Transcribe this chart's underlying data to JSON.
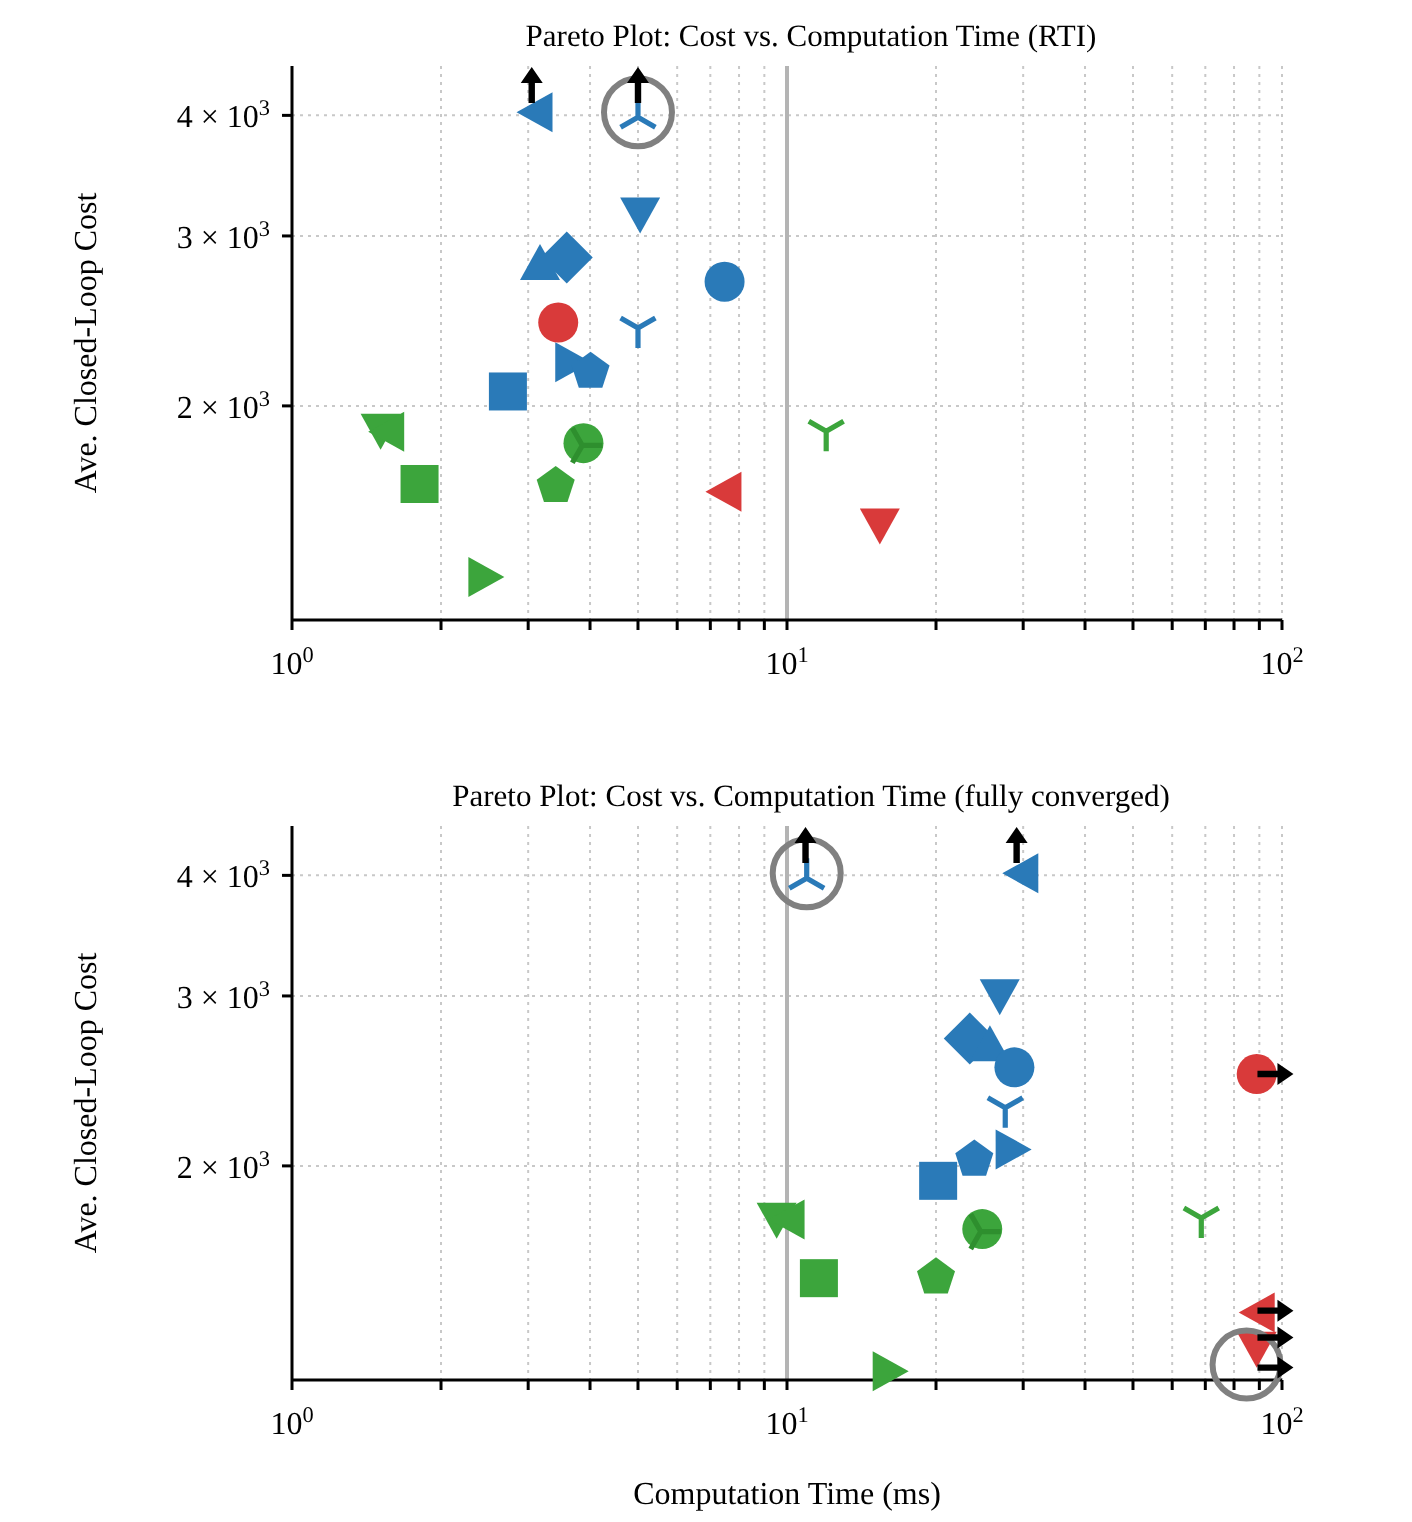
{
  "chart_data": [
    {
      "type": "scatter",
      "title": "Pareto Plot: Cost vs. Computation Time (RTI)",
      "ylabel": "Ave. Closed-Loop Cost",
      "log": "xy",
      "grid": true,
      "xlim": [
        1,
        100
      ],
      "ylim": [
        1200,
        4500
      ],
      "xticks": [
        {
          "value": 1,
          "label": "10$^{0}$"
        },
        {
          "value": 2,
          "label": null
        },
        {
          "value": 3,
          "label": null
        },
        {
          "value": 4,
          "label": null
        },
        {
          "value": 5,
          "label": null
        },
        {
          "value": 6,
          "label": null
        },
        {
          "value": 7,
          "label": null
        },
        {
          "value": 8,
          "label": null
        },
        {
          "value": 9,
          "label": null
        },
        {
          "value": 10,
          "label": "10$^{1}$"
        },
        {
          "value": 20,
          "label": null
        },
        {
          "value": 30,
          "label": null
        },
        {
          "value": 40,
          "label": null
        },
        {
          "value": 50,
          "label": null
        },
        {
          "value": 60,
          "label": null
        },
        {
          "value": 70,
          "label": null
        },
        {
          "value": 80,
          "label": null
        },
        {
          "value": 90,
          "label": null
        },
        {
          "value": 100,
          "label": "10$^{2}$"
        }
      ],
      "yticks": [
        {
          "value": 2000,
          "label": "2 × 10$^{3}$"
        },
        {
          "value": 3000,
          "label": "3 × 10$^{3}$"
        },
        {
          "value": 4000,
          "label": "4 × 10$^{3}$"
        }
      ],
      "ref_lines": [
        {
          "axis": "x",
          "value": 10,
          "color": "#b4b4b4"
        }
      ],
      "series": [
        {
          "color": "#2a7ab8",
          "marker": "triangle_left",
          "x": [
            3.09
          ],
          "values": [
            4030
          ]
        },
        {
          "color": "#2a7ab8",
          "marker": "cross_up",
          "x": [
            5.0
          ],
          "values": [
            4030
          ]
        },
        {
          "color": "#2a7ab8",
          "marker": "triangle_down",
          "x": [
            5.05
          ],
          "values": [
            3150
          ]
        },
        {
          "color": "#2a7ab8",
          "marker": "triangle",
          "x": [
            3.17
          ],
          "values": [
            2820
          ]
        },
        {
          "color": "#2a7ab8",
          "marker": "diamond",
          "x": [
            3.59
          ],
          "values": [
            2850
          ]
        },
        {
          "color": "#2a7ab8",
          "marker": "circle",
          "x": [
            7.48
          ],
          "values": [
            2690
          ]
        },
        {
          "color": "#2a7ab8",
          "marker": "cross_down",
          "x": [
            5.0
          ],
          "values": [
            2380
          ]
        },
        {
          "color": "#2a7ab8",
          "marker": "triangle_right",
          "x": [
            3.7
          ],
          "values": [
            2220
          ]
        },
        {
          "color": "#2a7ab8",
          "x": [
            4.01
          ],
          "values": [
            2180
          ]
        },
        {
          "color": "#2a7ab8",
          "marker": "square",
          "x": [
            2.73
          ],
          "values": [
            2070
          ]
        },
        {
          "color": "#3ca53c",
          "marker": "triangle_down",
          "x": [
            1.51
          ],
          "values": [
            1880
          ]
        },
        {
          "color": "#3ca53c",
          "marker": "triangle_left",
          "x": [
            1.55
          ],
          "values": [
            1880
          ]
        },
        {
          "color": "#3ca53c",
          "marker": "circle",
          "x": [
            3.88
          ],
          "values": [
            1830
          ]
        },
        {
          "color": "#2e8f2e",
          "marker": "cross_right",
          "x": [
            3.95
          ],
          "values": [
            1820
          ]
        },
        {
          "color": "#3ca53c",
          "marker": "square",
          "x": [
            1.81
          ],
          "values": [
            1660
          ]
        },
        {
          "color": "#3ca53c",
          "x": [
            3.41
          ],
          "values": [
            1660
          ]
        },
        {
          "color": "#3ca53c",
          "marker": "triangle_right",
          "x": [
            2.47
          ],
          "values": [
            1330
          ]
        },
        {
          "color": "#3ca53c",
          "marker": "cross_down",
          "x": [
            12.0
          ],
          "values": [
            1860
          ]
        },
        {
          "color": "#d93a3a",
          "marker": "circle",
          "x": [
            3.45
          ],
          "values": [
            2440
          ]
        },
        {
          "color": "#d93a3a",
          "marker": "triangle_left",
          "x": [
            7.44
          ],
          "values": [
            1630
          ]
        },
        {
          "color": "#d93a3a",
          "marker": "triangle_down",
          "x": [
            15.4
          ],
          "values": [
            1500
          ]
        },
        {
          "color": "#808080",
          "marker": "circle_open",
          "x": [
            5.0
          ],
          "values": [
            4030
          ]
        },
        {
          "color": "#000000",
          "marker": "triangle_arrow_up",
          "x": [
            3.05,
            5.0
          ],
          "values": [
            4300,
            4300
          ]
        }
      ]
    },
    {
      "type": "scatter",
      "title": "Pareto Plot: Cost vs. Computation Time (fully converged)",
      "xlabel": "Computation Time (ms)",
      "ylabel": "Ave. Closed-Loop Cost",
      "log": "xy",
      "grid": true,
      "xlim": [
        1,
        100
      ],
      "ylim": [
        1200,
        4500
      ],
      "xticks": [
        {
          "value": 1,
          "label": "10$^{0}$"
        },
        {
          "value": 2,
          "label": null
        },
        {
          "value": 3,
          "label": null
        },
        {
          "value": 4,
          "label": null
        },
        {
          "value": 5,
          "label": null
        },
        {
          "value": 6,
          "label": null
        },
        {
          "value": 7,
          "label": null
        },
        {
          "value": 8,
          "label": null
        },
        {
          "value": 9,
          "label": null
        },
        {
          "value": 10,
          "label": "10$^{1}$"
        },
        {
          "value": 20,
          "label": null
        },
        {
          "value": 30,
          "label": null
        },
        {
          "value": 40,
          "label": null
        },
        {
          "value": 50,
          "label": null
        },
        {
          "value": 60,
          "label": null
        },
        {
          "value": 70,
          "label": null
        },
        {
          "value": 80,
          "label": null
        },
        {
          "value": 90,
          "label": null
        },
        {
          "value": 100,
          "label": "10$^{2}$"
        }
      ],
      "yticks": [
        {
          "value": 2000,
          "label": "2 × 10$^{3}$"
        },
        {
          "value": 3000,
          "label": "3 × 10$^{3}$"
        },
        {
          "value": 4000,
          "label": "4 × 10$^{3}$"
        }
      ],
      "ref_lines": [
        {
          "axis": "x",
          "value": 10,
          "color": "#b4b4b4"
        }
      ],
      "series": [
        {
          "color": "#2a7ab8",
          "marker": "cross_up",
          "x": [
            10.96
          ],
          "values": [
            4020
          ]
        },
        {
          "color": "#2a7ab8",
          "marker": "triangle_left",
          "x": [
            29.6
          ],
          "values": [
            4020
          ]
        },
        {
          "color": "#2a7ab8",
          "marker": "triangle_down",
          "x": [
            26.9
          ],
          "values": [
            2990
          ]
        },
        {
          "color": "#2a7ab8",
          "marker": "diamond",
          "x": [
            23.4
          ],
          "values": [
            2710
          ]
        },
        {
          "color": "#2a7ab8",
          "marker": "triangle",
          "x": [
            25.7
          ],
          "values": [
            2680
          ]
        },
        {
          "color": "#2a7ab8",
          "marker": "circle",
          "x": [
            28.8
          ],
          "values": [
            2530
          ]
        },
        {
          "color": "#2a7ab8",
          "marker": "cross_down",
          "x": [
            27.6
          ],
          "values": [
            2270
          ]
        },
        {
          "color": "#2a7ab8",
          "marker": "triangle_right",
          "x": [
            28.7
          ],
          "values": [
            2080
          ]
        },
        {
          "color": "#2a7ab8",
          "x": [
            23.9
          ],
          "values": [
            2040
          ]
        },
        {
          "color": "#2a7ab8",
          "marker": "square",
          "x": [
            20.2
          ],
          "values": [
            1930
          ]
        },
        {
          "color": "#3ca53c",
          "marker": "triangle_down",
          "x": [
            9.53
          ],
          "values": [
            1755
          ]
        },
        {
          "color": "#3ca53c",
          "marker": "triangle_left",
          "x": [
            9.98
          ],
          "values": [
            1760
          ]
        },
        {
          "color": "#3ca53c",
          "marker": "circle",
          "x": [
            24.8
          ],
          "values": [
            1720
          ]
        },
        {
          "color": "#2e8f2e",
          "marker": "cross_right",
          "x": [
            25.2
          ],
          "values": [
            1710
          ]
        },
        {
          "color": "#3ca53c",
          "marker": "square",
          "x": [
            11.6
          ],
          "values": [
            1530
          ]
        },
        {
          "color": "#3ca53c",
          "x": [
            20.0
          ],
          "values": [
            1540
          ]
        },
        {
          "color": "#3ca53c",
          "marker": "triangle_right",
          "x": [
            16.2
          ],
          "values": [
            1225
          ]
        },
        {
          "color": "#3ca53c",
          "marker": "cross_down",
          "x": [
            68.7
          ],
          "values": [
            1745
          ]
        },
        {
          "color": "#d93a3a",
          "marker": "circle",
          "x": [
            88.9
          ],
          "values": [
            2490
          ]
        },
        {
          "color": "#d93a3a",
          "marker": "triangle_left",
          "x": [
            88.9
          ],
          "values": [
            1410
          ]
        },
        {
          "color": "#d93a3a",
          "marker": "triangle_down",
          "x": [
            88.9
          ],
          "values": [
            1290
          ]
        },
        {
          "color": "#808080",
          "marker": "circle_open",
          "x": [
            10.96,
            84.8
          ],
          "values": [
            4020,
            1245
          ]
        },
        {
          "color": "#000000",
          "marker": "triangle_arrow_up",
          "x": [
            10.9,
            29.1
          ],
          "values": [
            4300,
            4300
          ]
        },
        {
          "color": "#000000",
          "marker": "triangle_arrow_right",
          "x": [
            97,
            97,
            97,
            97
          ],
          "values": [
            2490,
            1416,
            1328,
            1236
          ]
        }
      ]
    }
  ]
}
